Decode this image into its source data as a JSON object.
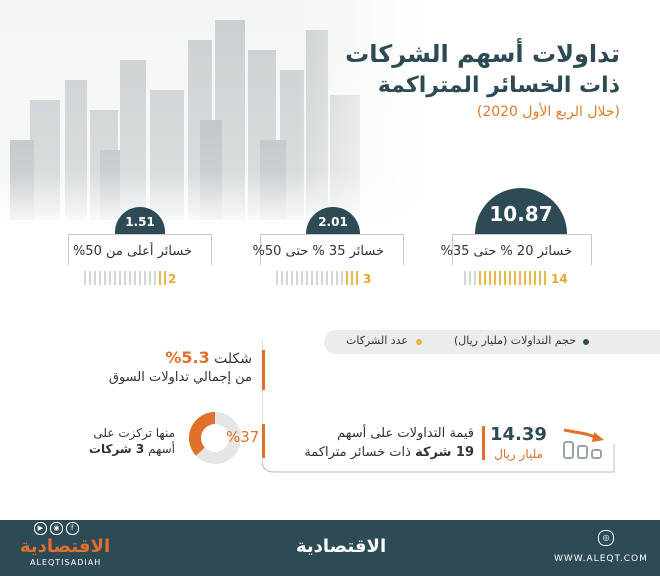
{
  "header": {
    "title_line1": "تداولات أسهم الشركات",
    "title_line2": "ذات الخسائر المتراكمة",
    "subtitle": "(خلال الربع الأول 2020)"
  },
  "chart_data": {
    "type": "table",
    "categories": [
      "خسائر 20 % حتى 35%",
      "خسائر 35 % حتى 50%",
      "خسائر أعلى من 50%"
    ],
    "series": [
      {
        "name": "حجم التداولات (مليار ريال)",
        "values": [
          10.87,
          2.01,
          1.51
        ]
      },
      {
        "name": "عدد الشركات",
        "values": [
          14,
          3,
          2
        ]
      }
    ]
  },
  "cards": [
    {
      "value": "10.87",
      "label": "خسائر 20 % حتى 35%",
      "count": "14",
      "count_num": 14
    },
    {
      "value": "2.01",
      "label": "خسائر 35 % حتى 50%",
      "count": "3",
      "count_num": 3
    },
    {
      "value": "1.51",
      "label": "خسائر أعلى من 50%",
      "count": "2",
      "count_num": 2
    }
  ],
  "legend": {
    "volume": "حجم التداولات (مليار ريال)",
    "companies": "عدد الشركات"
  },
  "summary": {
    "total_value": "14.39",
    "total_unit": "مليار ريال",
    "total_desc_line1": "قيمة التداولات على أسهم",
    "total_desc_line2_bold": "19 شركة",
    "total_desc_line2_rest": " ذات خسائر متراكمة",
    "share_pct": "5.3%",
    "share_prefix": "شكلت ",
    "share_line2": "من إجمالي تداولات السوق",
    "donut_pct": "37",
    "donut_sign": "%",
    "donut_fraction": 0.37,
    "donut_line1": "منها تركزت على",
    "donut_line2_prefix": "أسهم ",
    "donut_line2_bold": "3 شركات"
  },
  "footer": {
    "brand_center": "الاقتصادية",
    "brand_left": "الاقتصادية",
    "handle": "ALEQTISADIAH",
    "website": "WWW.ALEQT.COM"
  },
  "colors": {
    "navy": "#2e4a55",
    "orange": "#e0702a",
    "gold": "#e8b84a",
    "light_gray": "#ececec"
  }
}
